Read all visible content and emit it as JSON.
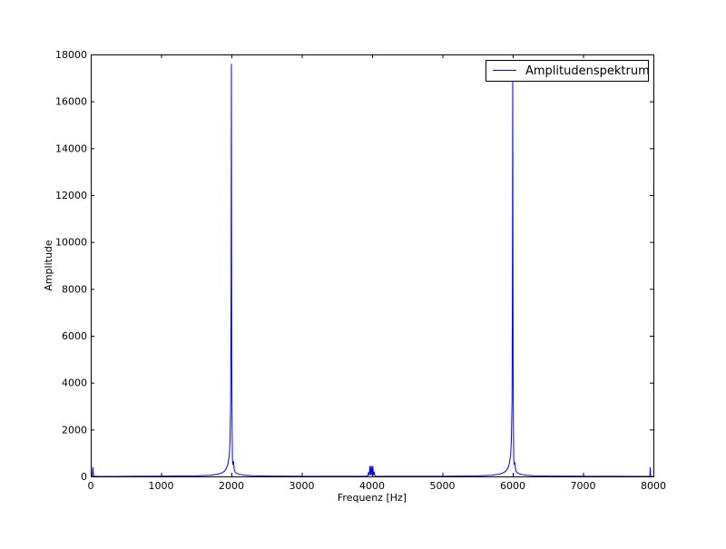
{
  "chart_data": {
    "type": "line",
    "title": "",
    "xlabel": "Frequenz [Hz]",
    "ylabel": "Amplitude",
    "xlim": [
      0,
      8000
    ],
    "ylim": [
      0,
      18000
    ],
    "xticks": [
      0,
      1000,
      2000,
      3000,
      4000,
      5000,
      6000,
      7000,
      8000
    ],
    "yticks": [
      0,
      2000,
      4000,
      6000,
      8000,
      10000,
      12000,
      14000,
      16000,
      18000
    ],
    "grid": false,
    "legend_position": "top-right",
    "series": [
      {
        "name": "Amplitudenspektrum",
        "color": "#0000ff",
        "x": [
          0,
          20,
          30,
          40,
          50,
          60,
          80,
          100,
          500,
          1000,
          1500,
          1700,
          1800,
          1850,
          1900,
          1930,
          1950,
          1970,
          1980,
          1990,
          1995,
          2000,
          2005,
          2010,
          2015,
          2020,
          2030,
          2040,
          2050,
          2070,
          2100,
          2150,
          2200,
          2300,
          2500,
          3000,
          3500,
          3900,
          3940,
          3950,
          3960,
          3970,
          3980,
          3990,
          4000,
          4010,
          4020,
          4030,
          4040,
          4050,
          4060,
          4100,
          4500,
          5000,
          5500,
          5700,
          5800,
          5850,
          5900,
          5930,
          5950,
          5970,
          5980,
          5990,
          5995,
          6000,
          6005,
          6010,
          6015,
          6020,
          6030,
          6040,
          6050,
          6070,
          6100,
          6150,
          6200,
          6300,
          6500,
          7000,
          7500,
          7900,
          7950,
          7955,
          7960,
          7970,
          7990,
          8000
        ],
        "values": [
          0,
          0,
          400,
          0,
          20,
          0,
          5,
          0,
          3,
          10,
          25,
          50,
          90,
          130,
          220,
          350,
          520,
          900,
          1500,
          3200,
          8000,
          17600,
          5000,
          2000,
          700,
          500,
          650,
          300,
          200,
          140,
          100,
          70,
          50,
          30,
          15,
          6,
          3,
          5,
          20,
          180,
          40,
          450,
          60,
          450,
          30,
          450,
          50,
          200,
          30,
          10,
          5,
          3,
          3,
          6,
          22,
          50,
          90,
          130,
          220,
          350,
          520,
          900,
          1500,
          3200,
          8000,
          17200,
          5000,
          2000,
          700,
          500,
          600,
          300,
          200,
          140,
          100,
          70,
          50,
          30,
          15,
          6,
          3,
          2,
          5,
          390,
          10,
          0,
          0,
          0
        ]
      }
    ]
  }
}
